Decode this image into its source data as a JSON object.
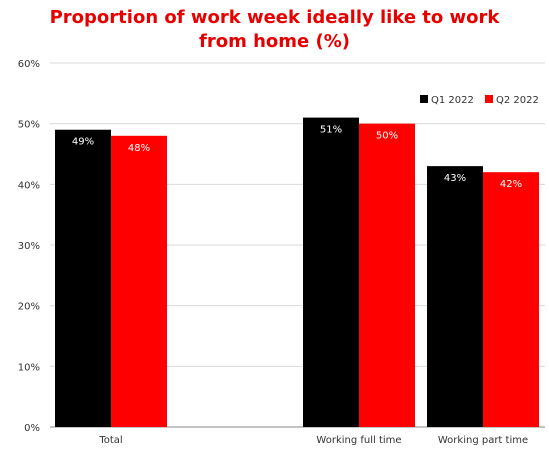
{
  "chart_data": {
    "type": "bar",
    "title": "Proportion of work week ideally like to work\nfrom home (%)",
    "categories": [
      "Total",
      "",
      "Working full time",
      "Working part time"
    ],
    "series": [
      {
        "name": "Q1 2022",
        "values": [
          49,
          null,
          51,
          43
        ],
        "labels": [
          "49%",
          "",
          "51%",
          "43%"
        ],
        "color": "#000000"
      },
      {
        "name": "Q2 2022",
        "values": [
          48,
          null,
          50,
          42
        ],
        "labels": [
          "48%",
          "",
          "50%",
          "42%"
        ],
        "color": "#ff0000"
      }
    ],
    "yticks": [
      "0%",
      "10%",
      "20%",
      "30%",
      "40%",
      "50%",
      "60%"
    ],
    "ylim": [
      0,
      60
    ],
    "grid": true,
    "legend_position": "top-right"
  },
  "colors": {
    "title": "#e60000",
    "grid": "#d9d9d9",
    "axis": "#888888"
  }
}
